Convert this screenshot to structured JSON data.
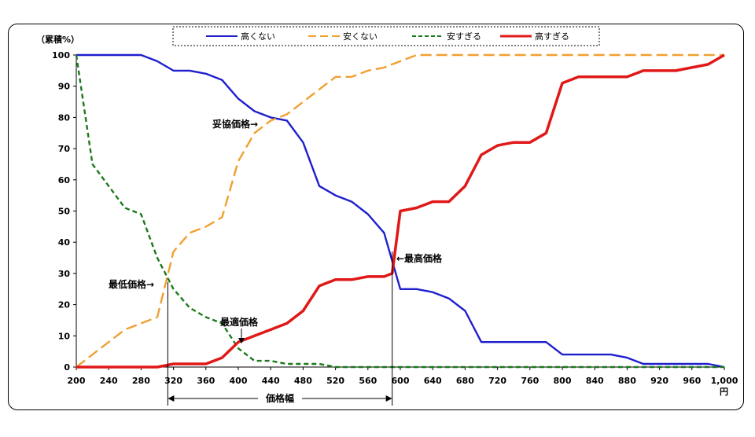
{
  "chart_data": {
    "type": "line",
    "ylabel": "（累積%）",
    "xunit": "円",
    "ylim": [
      0,
      100
    ],
    "xlim": [
      200,
      1000
    ],
    "xticks": [
      "200",
      "240",
      "280",
      "320",
      "360",
      "400",
      "440",
      "480",
      "520",
      "560",
      "600",
      "640",
      "680",
      "720",
      "760",
      "800",
      "840",
      "880",
      "920",
      "960",
      "1,000"
    ],
    "yticks": [
      "0",
      "10",
      "20",
      "30",
      "40",
      "50",
      "60",
      "70",
      "80",
      "90",
      "100"
    ],
    "grid": false,
    "legend_position": "top",
    "series": [
      {
        "name": "高くない",
        "color": "#1f1fcc",
        "style": "solid",
        "x": [
          200,
          220,
          240,
          260,
          280,
          300,
          320,
          340,
          360,
          380,
          400,
          420,
          440,
          460,
          480,
          500,
          520,
          540,
          560,
          580,
          600,
          620,
          640,
          660,
          680,
          700,
          720,
          740,
          760,
          780,
          800,
          820,
          840,
          860,
          880,
          900,
          920,
          940,
          960,
          980,
          1000
        ],
        "values": [
          100,
          100,
          100,
          100,
          100,
          98,
          95,
          95,
          94,
          92,
          86,
          82,
          80,
          79,
          72,
          58,
          55,
          53,
          49,
          43,
          25,
          25,
          24,
          22,
          18,
          8,
          8,
          8,
          8,
          8,
          4,
          4,
          4,
          4,
          3,
          1,
          1,
          1,
          1,
          1,
          0
        ]
      },
      {
        "name": "安くない",
        "color": "#f0a030",
        "style": "dashed",
        "x": [
          200,
          220,
          240,
          260,
          280,
          300,
          320,
          340,
          360,
          380,
          400,
          420,
          440,
          460,
          480,
          500,
          520,
          540,
          560,
          580,
          600,
          620,
          640,
          660,
          680,
          700,
          720,
          740,
          760,
          780,
          800,
          820,
          840,
          860,
          880,
          900,
          920,
          940,
          960,
          980,
          1000
        ],
        "values": [
          0,
          4,
          8,
          12,
          14,
          16,
          37,
          43,
          45,
          48,
          66,
          75,
          79,
          81,
          85,
          89,
          93,
          93,
          95,
          96,
          98,
          100,
          100,
          100,
          100,
          100,
          100,
          100,
          100,
          100,
          100,
          100,
          100,
          100,
          100,
          100,
          100,
          100,
          100,
          100,
          100
        ]
      },
      {
        "name": "安すぎる",
        "color": "#1a7a1a",
        "style": "dashed",
        "x": [
          200,
          220,
          240,
          260,
          280,
          300,
          320,
          340,
          360,
          380,
          400,
          420,
          440,
          460,
          480,
          500,
          520,
          540,
          560,
          580,
          600,
          620,
          640,
          660,
          680,
          700,
          720,
          740,
          760,
          780,
          800,
          820,
          840,
          860,
          880,
          900,
          920,
          940,
          960,
          980,
          1000
        ],
        "values": [
          100,
          65,
          58,
          51,
          49,
          35,
          25,
          19,
          16,
          14,
          6,
          2,
          2,
          1,
          1,
          1,
          0,
          0,
          0,
          0,
          0,
          0,
          0,
          0,
          0,
          0,
          0,
          0,
          0,
          0,
          0,
          0,
          0,
          0,
          0,
          0,
          0,
          0,
          0,
          0,
          0
        ]
      },
      {
        "name": "高すぎる",
        "color": "#e01818",
        "style": "solid",
        "x": [
          200,
          220,
          240,
          260,
          280,
          300,
          320,
          340,
          360,
          380,
          400,
          420,
          440,
          460,
          480,
          500,
          520,
          540,
          560,
          580,
          590,
          600,
          620,
          640,
          660,
          680,
          700,
          720,
          740,
          760,
          780,
          800,
          820,
          840,
          860,
          880,
          900,
          920,
          940,
          960,
          980,
          1000
        ],
        "values": [
          0,
          0,
          0,
          0,
          0,
          0,
          1,
          1,
          1,
          3,
          8,
          10,
          12,
          14,
          18,
          26,
          28,
          28,
          29,
          29,
          30,
          50,
          51,
          53,
          53,
          58,
          68,
          71,
          72,
          72,
          75,
          91,
          93,
          93,
          93,
          93,
          95,
          95,
          95,
          96,
          97,
          100
        ]
      }
    ],
    "annotations": {
      "compromise": "妥協価格→",
      "lowest": "最低価格→",
      "optimal": "最適価格",
      "highest": "←最高価格",
      "range": "価格幅"
    },
    "markers": {
      "lowest_price": 313,
      "optimal_price": 404,
      "highest_price": 590
    }
  }
}
